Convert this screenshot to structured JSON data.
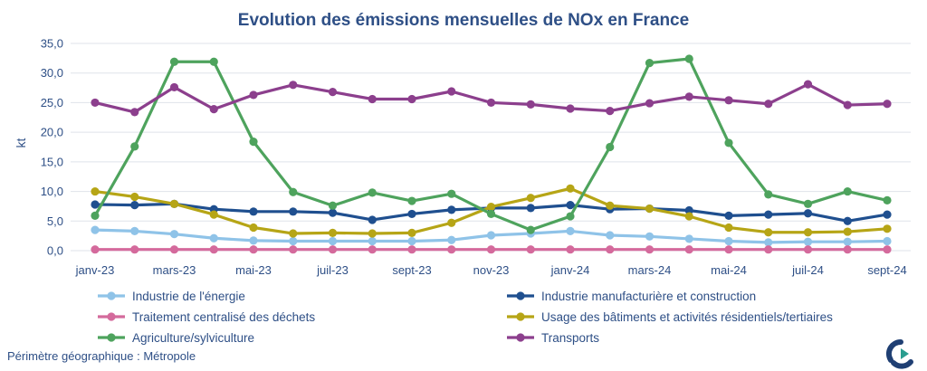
{
  "chart_data": {
    "type": "line",
    "title": "Evolution des émissions mensuelles de NOx en France",
    "ylabel": "kt",
    "xlabel": "",
    "ylim": [
      0,
      35
    ],
    "yticks": [
      "0,0",
      "5,0",
      "10,0",
      "15,0",
      "20,0",
      "25,0",
      "30,0",
      "35,0"
    ],
    "x": [
      "janv-23",
      "févr-23",
      "mars-23",
      "avr-23",
      "mai-23",
      "juin-23",
      "juil-23",
      "août-23",
      "sept-23",
      "oct-23",
      "nov-23",
      "déc-23",
      "janv-24",
      "févr-24",
      "mars-24",
      "avr-24",
      "mai-24",
      "juin-24",
      "juil-24",
      "août-24",
      "sept-24"
    ],
    "xtick_labels": [
      "janv-23",
      "mars-23",
      "mai-23",
      "juil-23",
      "sept-23",
      "nov-23",
      "janv-24",
      "mars-24",
      "mai-24",
      "juil-24",
      "sept-24"
    ],
    "grid": "horizontal",
    "legend_position": "bottom",
    "series": [
      {
        "name": "Industrie de l'énergie",
        "color": "#8fc3e8",
        "values": [
          3.5,
          3.3,
          2.8,
          2.1,
          1.7,
          1.6,
          1.6,
          1.6,
          1.6,
          1.8,
          2.6,
          2.9,
          3.3,
          2.6,
          2.4,
          2.0,
          1.6,
          1.4,
          1.5,
          1.5,
          1.6
        ]
      },
      {
        "name": "Industrie manufacturière et construction",
        "color": "#1f4f8f",
        "values": [
          7.8,
          7.7,
          7.9,
          7.0,
          6.6,
          6.6,
          6.4,
          5.2,
          6.2,
          6.9,
          7.2,
          7.2,
          7.7,
          7.0,
          7.1,
          6.8,
          5.9,
          6.1,
          6.3,
          5.0,
          6.1
        ]
      },
      {
        "name": "Traitement centralisé des déchets",
        "color": "#d46a9c",
        "values": [
          0.2,
          0.2,
          0.2,
          0.2,
          0.2,
          0.2,
          0.2,
          0.2,
          0.2,
          0.2,
          0.2,
          0.2,
          0.2,
          0.2,
          0.2,
          0.2,
          0.2,
          0.2,
          0.2,
          0.2,
          0.2
        ]
      },
      {
        "name": "Usage des bâtiments et activités résidentiels/tertiaires",
        "color": "#b6a516",
        "values": [
          10.0,
          9.1,
          7.9,
          6.1,
          3.9,
          2.9,
          3.0,
          2.9,
          3.0,
          4.7,
          7.4,
          8.9,
          10.5,
          7.6,
          7.1,
          5.8,
          3.9,
          3.1,
          3.1,
          3.2,
          3.7
        ]
      },
      {
        "name": "Agriculture/sylviculture",
        "color": "#4ea35d",
        "values": [
          5.9,
          17.6,
          31.9,
          31.9,
          18.4,
          9.9,
          7.6,
          9.8,
          8.4,
          9.6,
          6.2,
          3.5,
          5.8,
          17.5,
          31.7,
          32.4,
          18.2,
          9.5,
          7.9,
          10.0,
          8.5
        ]
      },
      {
        "name": "Transports",
        "color": "#8c3f8d",
        "values": [
          25.0,
          23.4,
          27.6,
          23.9,
          26.3,
          28.0,
          26.8,
          25.6,
          25.6,
          26.9,
          25.0,
          24.7,
          24.0,
          23.6,
          24.9,
          26.0,
          25.4,
          24.8,
          28.1,
          24.6,
          24.8
        ]
      }
    ]
  },
  "footnote": "Périmètre géographique : Métropole",
  "logo": {
    "icon": "citepa-logo-icon",
    "colors": [
      "#1f3f73",
      "#2a9d8f"
    ]
  }
}
